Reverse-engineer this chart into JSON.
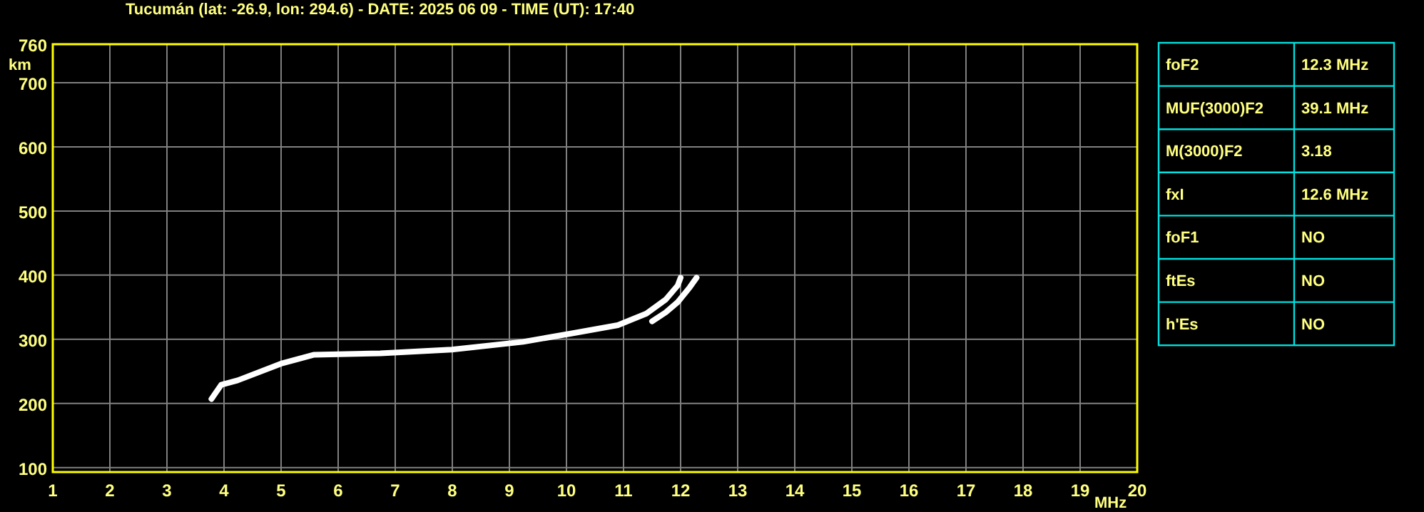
{
  "chart_data": [
    {
      "type": "line",
      "title": "Tucumán (lat: -26.9, lon: 294.6) - DATE: 2025 06 09 - TIME (UT): 17:40",
      "xlabel": "MHz",
      "ylabel": "km",
      "xlim": [
        1,
        20
      ],
      "ylim": [
        93,
        760
      ],
      "xticks": [
        1,
        2,
        3,
        4,
        5,
        6,
        7,
        8,
        9,
        10,
        11,
        12,
        13,
        14,
        15,
        16,
        17,
        18,
        19,
        20
      ],
      "yticks": [
        100,
        200,
        300,
        400,
        500,
        600,
        700,
        760
      ],
      "grid": true,
      "marker": "none",
      "line_style": "solid",
      "series": [
        {
          "color": "#ffffff",
          "x": [
            3.78,
            3.95,
            4.24,
            5.0,
            5.58,
            6.74,
            7.99,
            9.24,
            10.08,
            10.9,
            11.4,
            11.74,
            11.95,
            12.0
          ],
          "values": [
            207,
            229,
            236,
            262,
            276,
            278,
            284,
            296,
            309,
            322,
            340,
            362,
            384,
            396
          ]
        },
        {
          "color": "#ffffff",
          "x": [
            11.5,
            11.74,
            11.95,
            12.16,
            12.28
          ],
          "values": [
            328,
            342,
            358,
            381,
            396
          ]
        }
      ]
    },
    {
      "type": "other",
      "annotations": [
        "foF2",
        "12.3 MHz",
        "MUF(3000)F2",
        "39.1 MHz",
        "M(3000)F2",
        "3.18",
        "fxI",
        "12.6 MHz",
        "foF1",
        "NO",
        "ftEs",
        "NO",
        "h'Es",
        "NO"
      ]
    }
  ]
}
